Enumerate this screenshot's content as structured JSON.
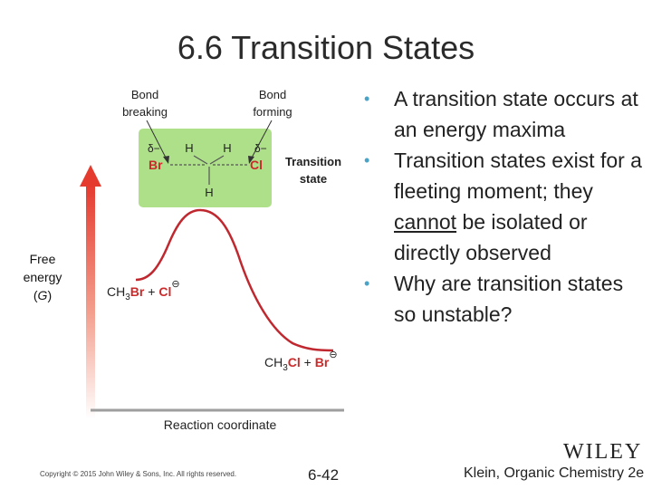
{
  "slide": {
    "title": "6.6 Transition States",
    "copyright": "Copyright © 2015 John Wiley & Sons, Inc. All rights reserved.",
    "page_number": "6-42",
    "publisher_logo": "WILEY",
    "book": "Klein, Organic Chemistry 2e"
  },
  "diagram": {
    "y_axis_label_line1": "Free",
    "y_axis_label_line2": "energy",
    "y_axis_label_symbol": "G",
    "x_axis_label": "Reaction coordinate",
    "reactants": {
      "formula_a": "CH",
      "formula_a_sub": "3",
      "formula_b": "Br",
      "plus": " + ",
      "ion": "Cl",
      "charge": "⊖"
    },
    "products": {
      "formula_a": "CH",
      "formula_a_sub": "3",
      "formula_b": "Cl",
      "plus": " + ",
      "ion": "Br",
      "charge": "⊖"
    },
    "transition_state": {
      "label_line1": "Transition",
      "label_line2": "state",
      "bond_breaking_line1": "Bond",
      "bond_breaking_line2": "breaking",
      "bond_forming_line1": "Bond",
      "bond_forming_line2": "forming",
      "delta_minus": "δ−",
      "atom_left": "Br",
      "atom_right": "Cl",
      "atom_h": "H"
    },
    "colors": {
      "arrow": "#e53b2f",
      "curve": "#c0282f",
      "ts_box": "#aee08a",
      "halogen": "#cc2a2a"
    }
  },
  "bullets": [
    {
      "pre": "A transition state occurs at an energy maxima"
    },
    {
      "pre": "Transition states exist for a fleeting moment; they ",
      "underlined": "cannot",
      "post": " be isolated or directly observed"
    },
    {
      "pre": "Why are transition states so unstable?"
    }
  ]
}
